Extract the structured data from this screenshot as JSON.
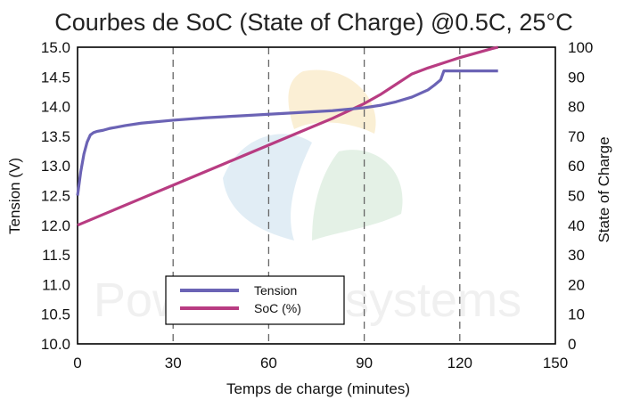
{
  "chart_data": {
    "type": "line",
    "title": "Courbes de SoC (State of Charge) @0.5C, 25°C",
    "xlabel": "Temps de charge (minutes)",
    "ylabel_left": "Tension (V)",
    "ylabel_right": "State of Charge",
    "xlim": [
      0,
      150
    ],
    "ylim_left": [
      10.0,
      15.0
    ],
    "ylim_right": [
      0,
      100
    ],
    "x_ticks": [
      "0",
      "30",
      "60",
      "90",
      "120",
      "150"
    ],
    "y_left_ticks": [
      "10.0",
      "10.5",
      "11.0",
      "11.5",
      "12.0",
      "12.5",
      "13.0",
      "13.5",
      "14.0",
      "14.5",
      "15.0"
    ],
    "y_right_ticks": [
      "0",
      "10",
      "20",
      "30",
      "40",
      "50",
      "60",
      "70",
      "80",
      "90",
      "100"
    ],
    "grid": true,
    "legend_position": "bottom-center",
    "series": [
      {
        "name": "Tension",
        "axis": "left",
        "color": "#6b63b5",
        "x": [
          0,
          1,
          2,
          3,
          4,
          5,
          6,
          8,
          10,
          15,
          20,
          30,
          40,
          50,
          60,
          70,
          80,
          90,
          95,
          100,
          105,
          110,
          112,
          114,
          115,
          116,
          120,
          125,
          130,
          132
        ],
        "y": [
          12.5,
          12.9,
          13.2,
          13.4,
          13.52,
          13.56,
          13.58,
          13.6,
          13.63,
          13.68,
          13.72,
          13.77,
          13.81,
          13.84,
          13.87,
          13.9,
          13.93,
          13.98,
          14.02,
          14.08,
          14.16,
          14.28,
          14.36,
          14.45,
          14.6,
          14.6,
          14.6,
          14.6,
          14.6,
          14.6
        ]
      },
      {
        "name": "SoC (%)",
        "axis": "right",
        "color": "#b83c82",
        "x": [
          0,
          10,
          20,
          30,
          40,
          50,
          60,
          70,
          80,
          90,
          95,
          100,
          105,
          110,
          120,
          130,
          132
        ],
        "y": [
          40,
          44.5,
          49,
          53.5,
          58,
          62.5,
          67,
          71.5,
          76,
          81,
          84,
          87.5,
          91,
          93,
          96.5,
          99.5,
          100
        ]
      }
    ],
    "watermark": "PowerTech systems"
  }
}
